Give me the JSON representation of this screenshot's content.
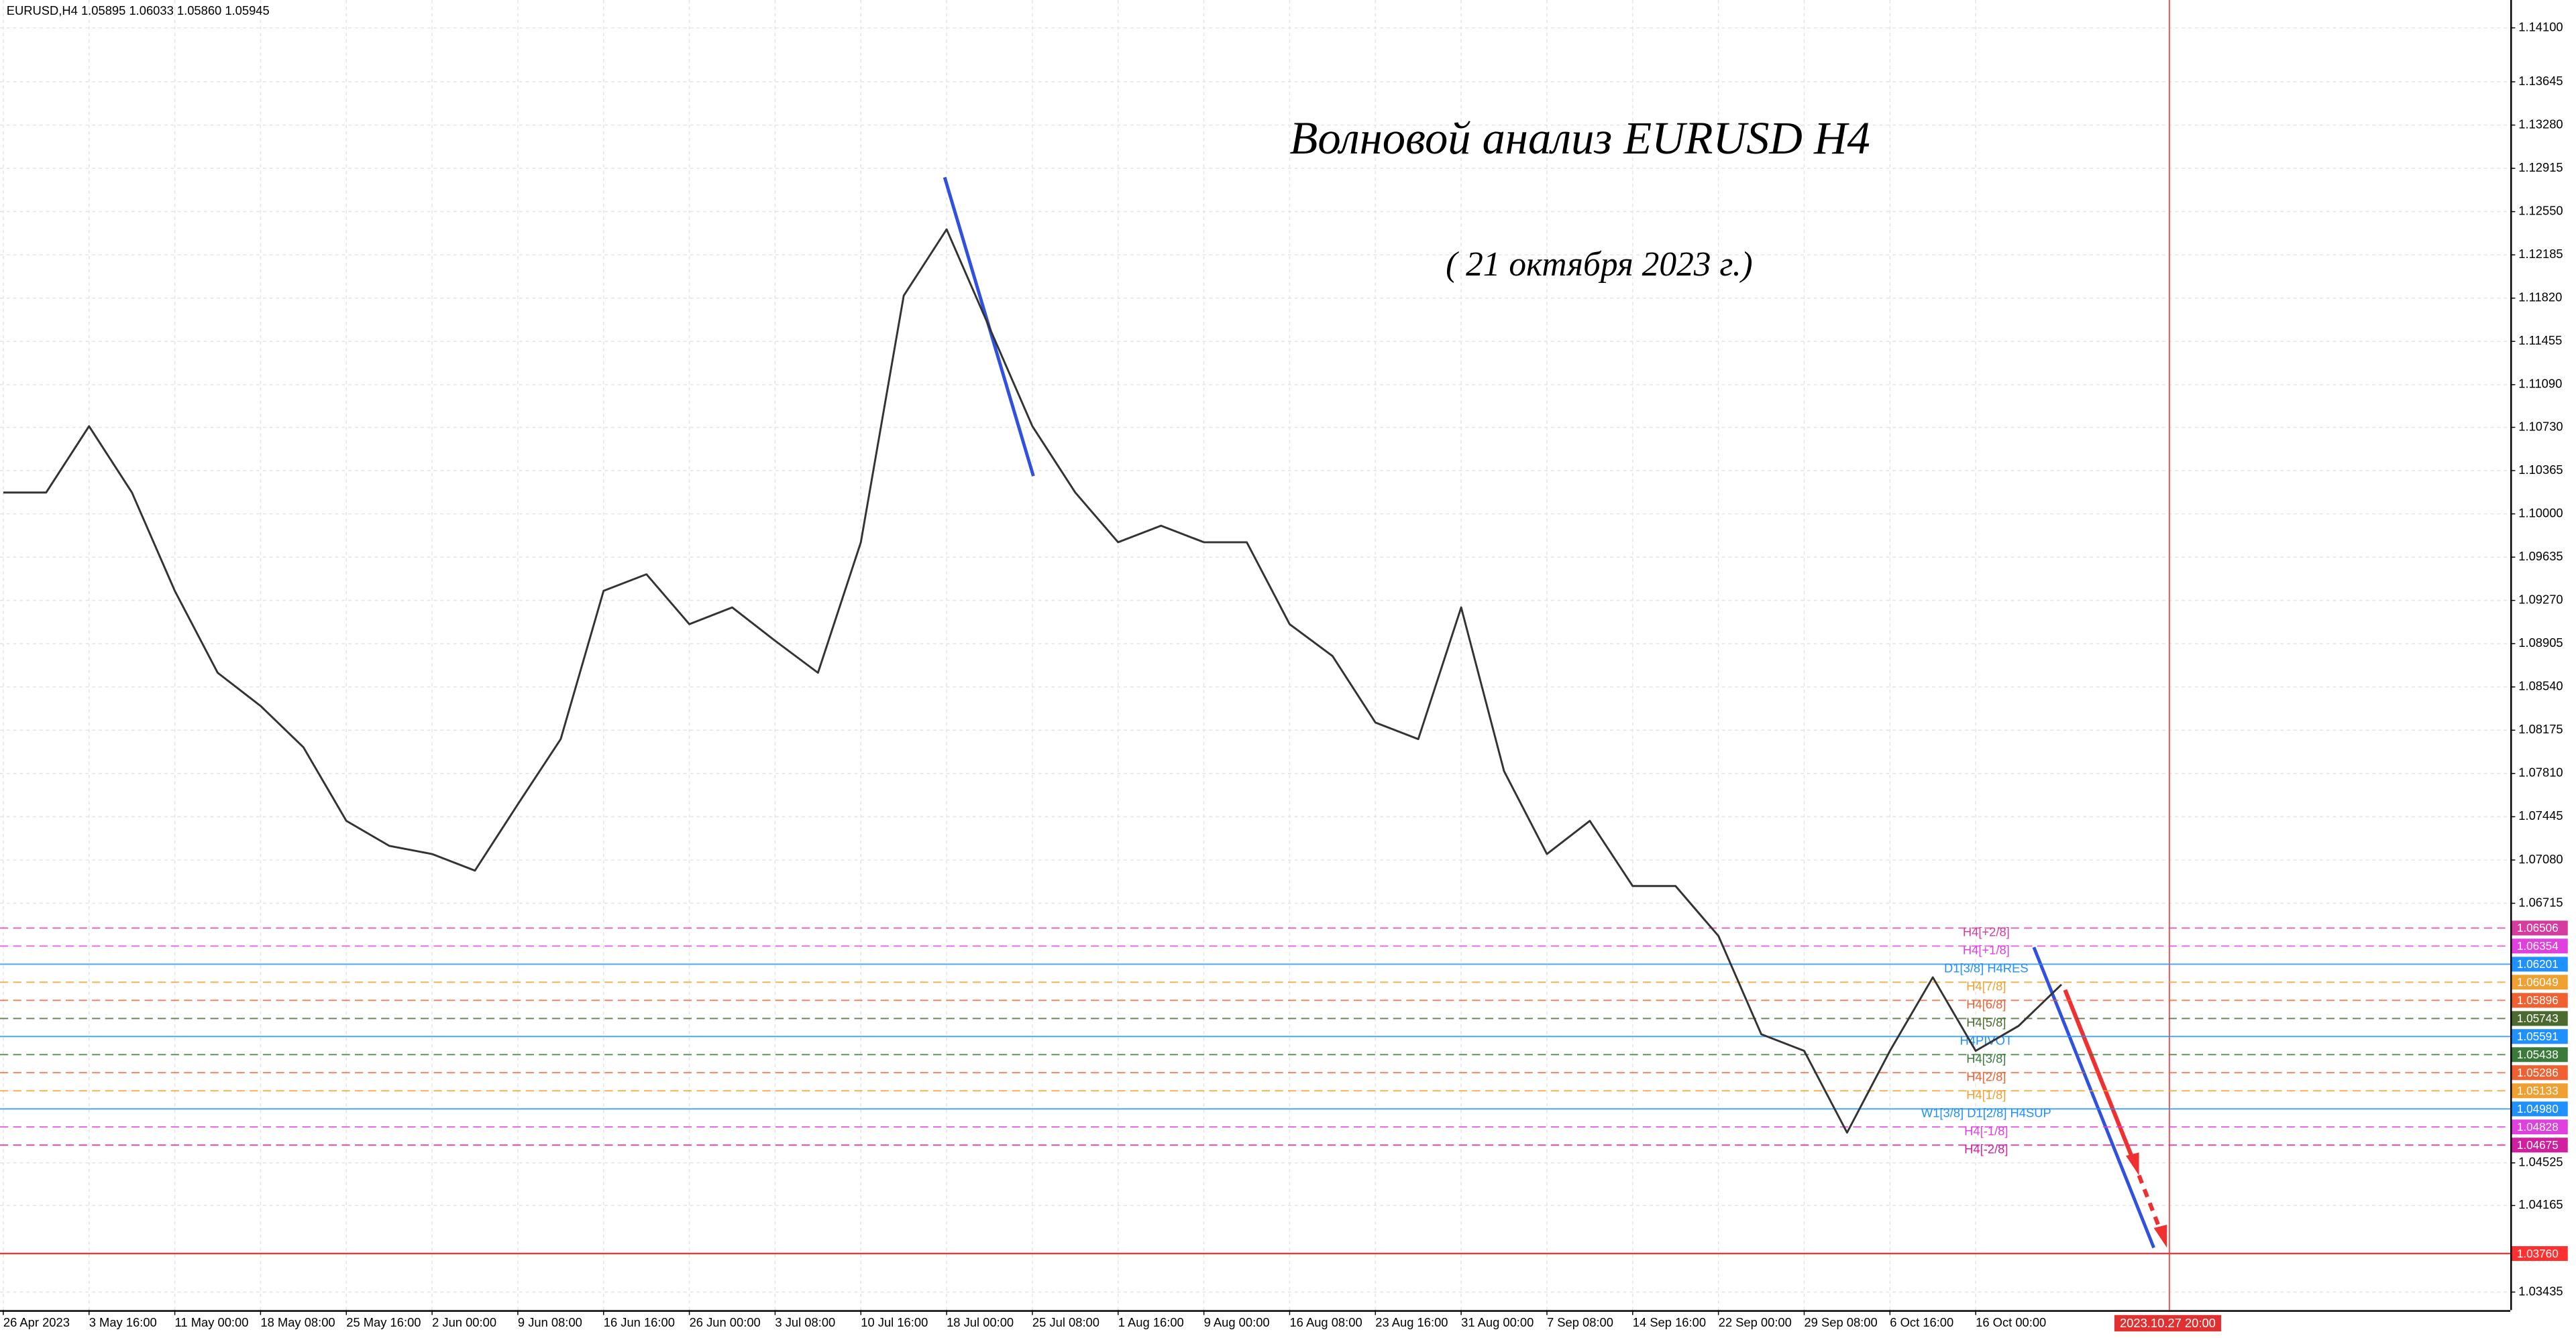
{
  "chart_data": {
    "type": "line",
    "header": "EURUSD,H4  1.05895 1.06033 1.05860 1.05945",
    "title": "Волновой анализ EURUSD H4",
    "subtitle": "( 21 октября 2023 г.)",
    "categories": [
      "26 Apr 2023",
      null,
      "3 May 16:00",
      null,
      "11 May 00:00",
      null,
      "18 May 08:00",
      null,
      "25 May 16:00",
      null,
      "2 Jun 00:00",
      null,
      "9 Jun 08:00",
      null,
      "16 Jun 16:00",
      null,
      "26 Jun 00:00",
      null,
      "3 Jul 08:00",
      null,
      "10 Jul 16:00",
      null,
      "18 Jul 00:00",
      null,
      "25 Jul 08:00",
      null,
      "1 Aug 16:00",
      null,
      "9 Aug 00:00",
      null,
      "16 Aug 08:00",
      null,
      "23 Aug 16:00",
      null,
      "31 Aug 00:00",
      null,
      "7 Sep 08:00",
      null,
      "14 Sep 16:00",
      null,
      "22 Sep 00:00",
      null,
      "29 Sep 08:00",
      null,
      "6 Oct 16:00",
      null,
      "16 Oct 00:00",
      null,
      null
    ],
    "series": [
      {
        "color": "#333333",
        "values": [
          1.1018,
          1.1018,
          1.1074,
          1.1018,
          1.0935,
          1.0866,
          1.0838,
          1.0803,
          1.0741,
          1.072,
          1.0713,
          1.0699,
          1.0755,
          1.081,
          1.0935,
          1.0949,
          1.0907,
          1.0921,
          1.0893,
          1.0866,
          1.0976,
          1.1184,
          1.124,
          1.1157,
          1.1074,
          1.1018,
          1.0976,
          1.099,
          1.0976,
          1.0976,
          1.0907,
          1.088,
          1.0824,
          1.081,
          1.0921,
          1.0783,
          1.0713,
          1.0741,
          1.0686,
          1.0686,
          1.0644,
          1.0561,
          1.0547,
          1.0478,
          1.0547,
          1.0609,
          1.0547,
          1.0568,
          1.0603
        ]
      }
    ],
    "ylim": [
      1.03283,
      1.14335
    ],
    "yticks": [
      {
        "value": 1.141,
        "label": "1.14100"
      },
      {
        "value": 1.13645,
        "label": "1.13645"
      },
      {
        "value": 1.1328,
        "label": "1.13280"
      },
      {
        "value": 1.12915,
        "label": "1.12915"
      },
      {
        "value": 1.1255,
        "label": "1.12550"
      },
      {
        "value": 1.12185,
        "label": "1.12185"
      },
      {
        "value": 1.1182,
        "label": "1.11820"
      },
      {
        "value": 1.11455,
        "label": "1.11455"
      },
      {
        "value": 1.1109,
        "label": "1.11090"
      },
      {
        "value": 1.1073,
        "label": "1.10730"
      },
      {
        "value": 1.10365,
        "label": "1.10365"
      },
      {
        "value": 1.1,
        "label": "1.10000"
      },
      {
        "value": 1.09635,
        "label": "1.09635"
      },
      {
        "value": 1.0927,
        "label": "1.09270"
      },
      {
        "value": 1.08905,
        "label": "1.08905"
      },
      {
        "value": 1.0854,
        "label": "1.08540"
      },
      {
        "value": 1.08175,
        "label": "1.08175"
      },
      {
        "value": 1.0781,
        "label": "1.07810"
      },
      {
        "value": 1.07445,
        "label": "1.07445"
      },
      {
        "value": 1.0708,
        "label": "1.07080"
      },
      {
        "value": 1.06715,
        "label": "1.06715"
      },
      {
        "value": 1.04525,
        "label": "1.04525"
      },
      {
        "value": 1.04165,
        "label": "1.04165"
      },
      {
        "value": 1.03435,
        "label": "1.03435"
      }
    ],
    "grid": true,
    "levels": [
      {
        "name": "H4[+2/8]",
        "value": 1.06506,
        "value_label": "1.06506",
        "color": "#d63ca0",
        "dash": true
      },
      {
        "name": "H4[+1/8]",
        "value": 1.06354,
        "value_label": "1.06354",
        "color": "#e040e0",
        "dash": true
      },
      {
        "name": "D1[3/8] H4RES",
        "value": 1.06201,
        "value_label": "1.06201",
        "color": "#1e90ff",
        "dash": false
      },
      {
        "name": "H4[7/8]",
        "value": 1.06049,
        "value_label": "1.06049",
        "color": "#f0a030",
        "dash": true
      },
      {
        "name": "H4[6/8]",
        "value": 1.05896,
        "value_label": "1.05896",
        "color": "#f06030",
        "dash": true
      },
      {
        "name": "H4[5/8]",
        "value": 1.05743,
        "value_label": "1.05743",
        "color": "#4a6a30",
        "dash": true
      },
      {
        "name": "H4PIVOT",
        "value": 1.05591,
        "value_label": "1.05591",
        "color": "#1e90ff",
        "dash": false
      },
      {
        "name": "H4[3/8]",
        "value": 1.05438,
        "value_label": "1.05438",
        "color": "#3a7a3a",
        "dash": true
      },
      {
        "name": "H4[2/8]",
        "value": 1.05286,
        "value_label": "1.05286",
        "color": "#f06030",
        "dash": true
      },
      {
        "name": "H4[1/8]",
        "value": 1.05133,
        "value_label": "1.05133",
        "color": "#f0a030",
        "dash": true
      },
      {
        "name": "W1[3/8] D1[2/8] H4SUP",
        "value": 1.0498,
        "value_label": "1.04980",
        "color": "#1e90ff",
        "dash": false
      },
      {
        "name": "H4[-1/8]",
        "value": 1.04828,
        "value_label": "1.04828",
        "color": "#e040e0",
        "dash": true
      },
      {
        "name": "H4[-2/8]",
        "value": 1.04675,
        "value_label": "1.04675",
        "color": "#d020a0",
        "dash": true
      }
    ],
    "target": {
      "value": 1.0376,
      "value_label": "1.03760",
      "color": "#ff3030"
    },
    "vline_label": "2023.10.27 20:00"
  }
}
